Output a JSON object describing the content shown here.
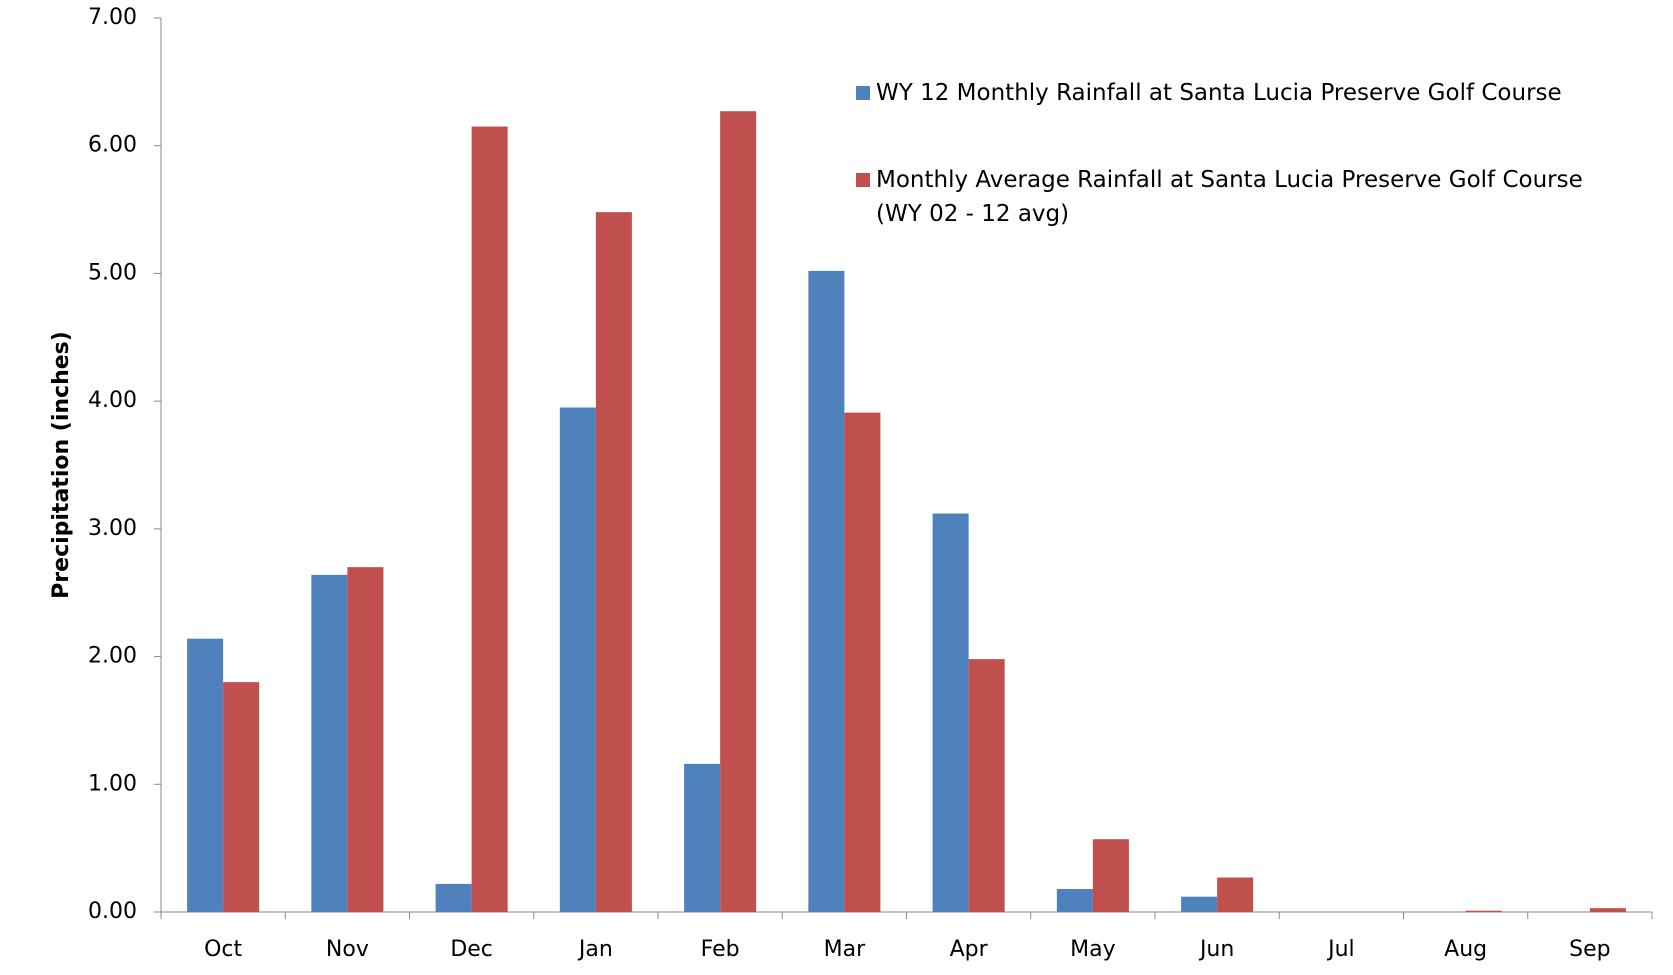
{
  "chart_data": {
    "type": "bar",
    "y_label": "Precipitation (inches)",
    "categories": [
      "Oct",
      "Nov",
      "Dec",
      "Jan",
      "Feb",
      "Mar",
      "Apr",
      "May",
      "Jun",
      "Jul",
      "Aug",
      "Sep"
    ],
    "series": [
      {
        "name": "WY 12 Monthly Rainfall at Santa Lucia Preserve Golf Course",
        "color": "#4f81bd",
        "values": [
          2.14,
          2.64,
          0.22,
          3.95,
          1.16,
          5.02,
          3.12,
          0.18,
          0.12,
          0,
          0,
          0
        ]
      },
      {
        "name": "Monthly Average Rainfall at Santa Lucia Preserve Golf Course\n(WY 02 - 12 avg)",
        "color": "#c0504d",
        "values": [
          1.8,
          2.7,
          6.15,
          5.48,
          6.27,
          3.91,
          1.98,
          0.57,
          0.27,
          0,
          0.01,
          0.03
        ]
      }
    ],
    "ylim": [
      0,
      7
    ],
    "yticks": [
      {
        "value": 0,
        "label": "0.00"
      },
      {
        "value": 1,
        "label": "1.00"
      },
      {
        "value": 2,
        "label": "2.00"
      },
      {
        "value": 3,
        "label": "3.00"
      },
      {
        "value": 4,
        "label": "4.00"
      },
      {
        "value": 5,
        "label": "5.00"
      },
      {
        "value": 6,
        "label": "6.00"
      },
      {
        "value": 7,
        "label": "7.00"
      }
    ],
    "grid": false,
    "legend": "top-right"
  }
}
